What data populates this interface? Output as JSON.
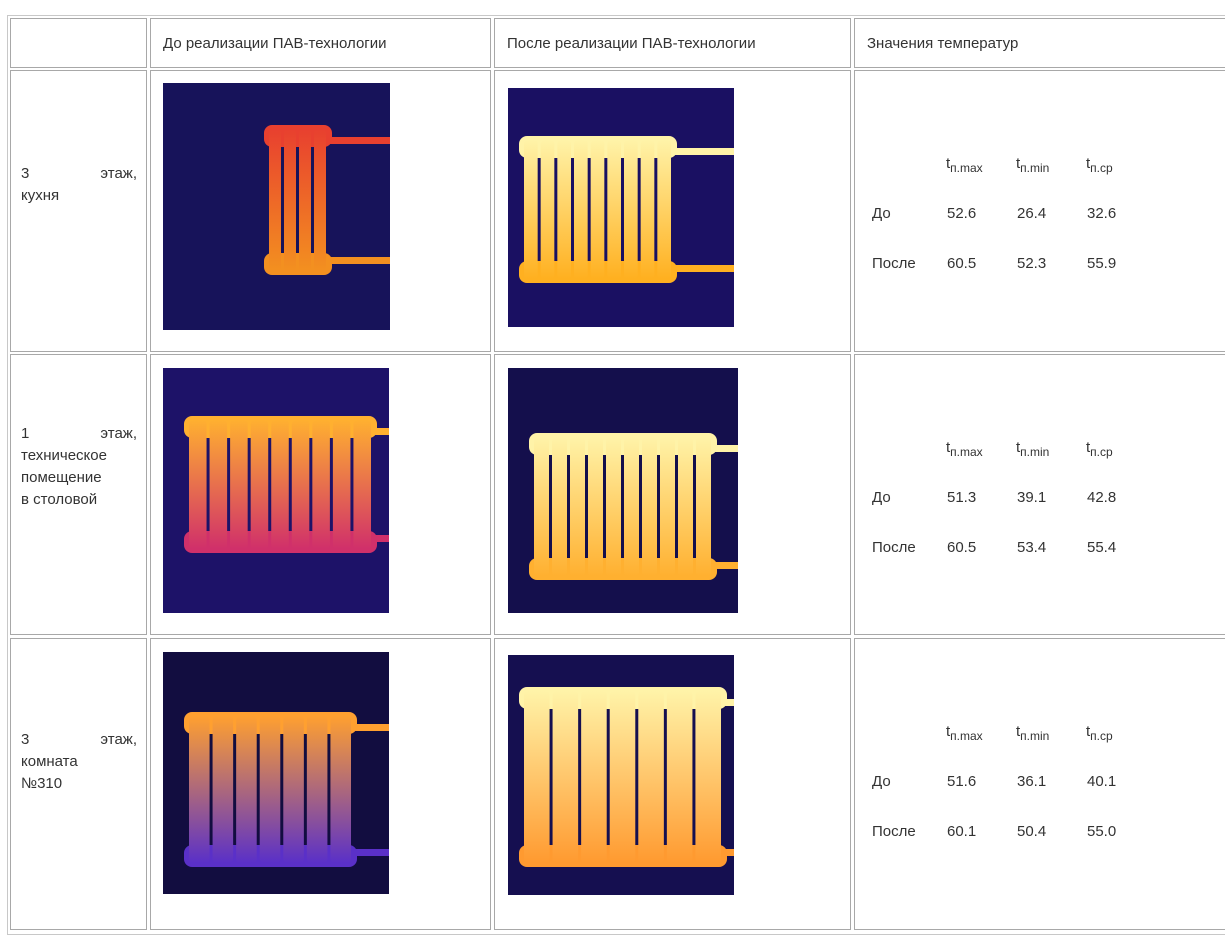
{
  "table": {
    "header": [
      "До реализации ПАВ-технологии",
      "После реализации ПАВ-технологии",
      "Значения температур"
    ],
    "rows": [
      {
        "label": [
          "3 этаж,",
          "кухня"
        ],
        "temps": {
          "columns": [
            {
              "base": "t",
              "sub": "п.max"
            },
            {
              "base": "t",
              "sub": "п.min"
            },
            {
              "base": "t",
              "sub": "п.ср"
            }
          ],
          "rows": [
            {
              "name": "До",
              "values": [
                "52.6",
                "26.4",
                "32.6"
              ]
            },
            {
              "name": "После",
              "values": [
                "60.5",
                "52.3",
                "55.9"
              ]
            }
          ]
        }
      },
      {
        "label": [
          "1 этаж,",
          "техническое",
          "помещение",
          "в столовой"
        ],
        "temps": {
          "columns": [
            {
              "base": "t",
              "sub": "п.max"
            },
            {
              "base": "t",
              "sub": "п.min"
            },
            {
              "base": "t",
              "sub": "п.ср"
            }
          ],
          "rows": [
            {
              "name": "До",
              "values": [
                "51.3",
                "39.1",
                "42.8"
              ]
            },
            {
              "name": "После",
              "values": [
                "60.5",
                "53.4",
                "55.4"
              ]
            }
          ]
        }
      },
      {
        "label": [
          "3 этаж,",
          "комната",
          "№310"
        ],
        "temps": {
          "columns": [
            {
              "base": "t",
              "sub": "п.max"
            },
            {
              "base": "t",
              "sub": "п.min"
            },
            {
              "base": "t",
              "sub": "п.ср"
            }
          ],
          "rows": [
            {
              "name": "До",
              "values": [
                "51.6",
                "36.1",
                "40.1"
              ]
            },
            {
              "name": "После",
              "values": [
                "60.1",
                "50.4",
                "55.0"
              ]
            }
          ]
        }
      }
    ]
  }
}
